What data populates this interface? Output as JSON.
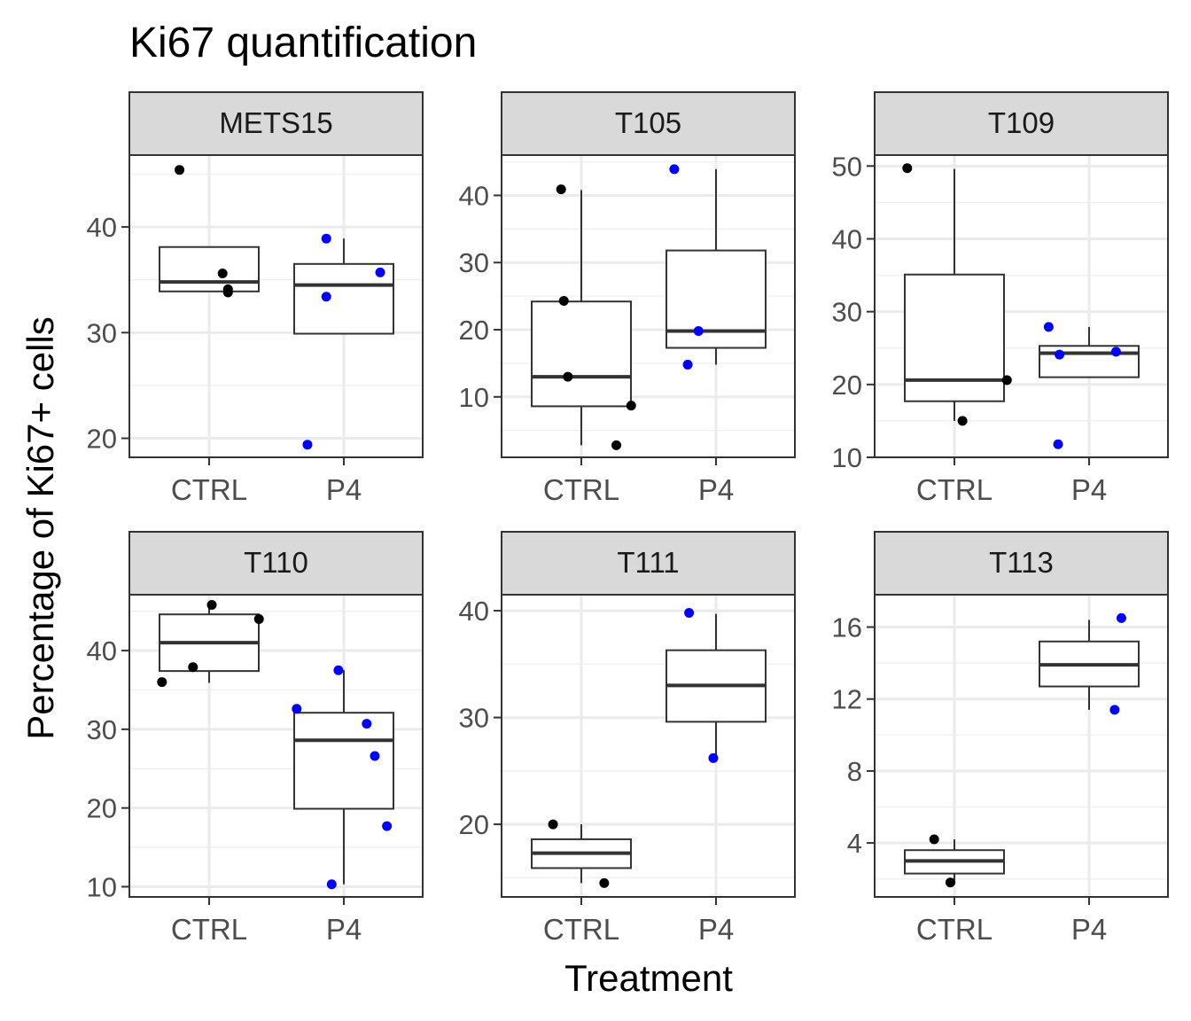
{
  "chart_data": {
    "type": "boxplot",
    "title": "Ki67 quantification",
    "xlabel": "Treatment",
    "ylabel": "Percentage of Ki67+ cells",
    "categories": [
      "CTRL",
      "P4"
    ],
    "colors": {
      "CTRL": "#000000",
      "P4": "#0000ff"
    },
    "grid": true,
    "panels": [
      {
        "name": "METS15",
        "ylim": [
          18.2,
          46.8
        ],
        "yticks": [
          20,
          30,
          40
        ],
        "boxes": [
          {
            "group": "CTRL",
            "q1": 33.9,
            "median": 34.8,
            "q3": 38.1,
            "whisker_low": 33.9,
            "whisker_high": 38.1
          },
          {
            "group": "P4",
            "q1": 29.9,
            "median": 34.5,
            "q3": 36.5,
            "whisker_low": 29.9,
            "whisker_high": 38.9
          }
        ],
        "points": [
          {
            "group": "CTRL",
            "jitter": -0.22,
            "y": 45.4
          },
          {
            "group": "CTRL",
            "jitter": 0.1,
            "y": 35.6
          },
          {
            "group": "CTRL",
            "jitter": 0.14,
            "y": 34.1
          },
          {
            "group": "CTRL",
            "jitter": 0.14,
            "y": 33.8
          },
          {
            "group": "P4",
            "jitter": -0.27,
            "y": 19.4
          },
          {
            "group": "P4",
            "jitter": -0.13,
            "y": 33.4
          },
          {
            "group": "P4",
            "jitter": -0.13,
            "y": 38.9
          },
          {
            "group": "P4",
            "jitter": 0.27,
            "y": 35.7
          }
        ]
      },
      {
        "name": "T105",
        "ylim": [
          1.0,
          46.0
        ],
        "yticks": [
          10,
          20,
          30,
          40
        ],
        "boxes": [
          {
            "group": "CTRL",
            "q1": 8.6,
            "median": 13.0,
            "q3": 24.2,
            "whisker_low": 2.8,
            "whisker_high": 40.8
          },
          {
            "group": "P4",
            "q1": 17.3,
            "median": 19.8,
            "q3": 31.8,
            "whisker_low": 14.8,
            "whisker_high": 43.9
          }
        ],
        "points": [
          {
            "group": "CTRL",
            "jitter": -0.15,
            "y": 40.9
          },
          {
            "group": "CTRL",
            "jitter": -0.13,
            "y": 24.3
          },
          {
            "group": "CTRL",
            "jitter": -0.1,
            "y": 13.0
          },
          {
            "group": "CTRL",
            "jitter": 0.26,
            "y": 2.8
          },
          {
            "group": "CTRL",
            "jitter": 0.37,
            "y": 8.7
          },
          {
            "group": "P4",
            "jitter": -0.31,
            "y": 43.9
          },
          {
            "group": "P4",
            "jitter": -0.21,
            "y": 14.8
          },
          {
            "group": "P4",
            "jitter": -0.13,
            "y": 19.8
          }
        ]
      },
      {
        "name": "T109",
        "ylim": [
          10.0,
          51.5
        ],
        "yticks": [
          10,
          20,
          30,
          40,
          50
        ],
        "boxes": [
          {
            "group": "CTRL",
            "q1": 17.7,
            "median": 20.6,
            "q3": 35.1,
            "whisker_low": 15.0,
            "whisker_high": 49.6
          },
          {
            "group": "P4",
            "q1": 21.0,
            "median": 24.3,
            "q3": 25.3,
            "whisker_low": 21.0,
            "whisker_high": 27.9
          }
        ],
        "points": [
          {
            "group": "CTRL",
            "jitter": -0.35,
            "y": 49.7
          },
          {
            "group": "CTRL",
            "jitter": 0.06,
            "y": 15.0
          },
          {
            "group": "CTRL",
            "jitter": 0.39,
            "y": 20.6
          },
          {
            "group": "P4",
            "jitter": -0.3,
            "y": 27.9
          },
          {
            "group": "P4",
            "jitter": -0.22,
            "y": 24.1
          },
          {
            "group": "P4",
            "jitter": -0.23,
            "y": 11.8
          },
          {
            "group": "P4",
            "jitter": 0.2,
            "y": 24.5
          }
        ]
      },
      {
        "name": "T110",
        "ylim": [
          8.7,
          47.1
        ],
        "yticks": [
          10,
          20,
          30,
          40
        ],
        "boxes": [
          {
            "group": "CTRL",
            "q1": 37.4,
            "median": 41.0,
            "q3": 44.6,
            "whisker_low": 35.9,
            "whisker_high": 45.8
          },
          {
            "group": "P4",
            "q1": 19.9,
            "median": 28.6,
            "q3": 32.1,
            "whisker_low": 10.3,
            "whisker_high": 37.5
          }
        ],
        "points": [
          {
            "group": "CTRL",
            "jitter": -0.35,
            "y": 36.0
          },
          {
            "group": "CTRL",
            "jitter": -0.12,
            "y": 37.9
          },
          {
            "group": "CTRL",
            "jitter": 0.02,
            "y": 45.8
          },
          {
            "group": "CTRL",
            "jitter": 0.37,
            "y": 44.0
          },
          {
            "group": "P4",
            "jitter": -0.35,
            "y": 32.6
          },
          {
            "group": "P4",
            "jitter": -0.09,
            "y": 10.3
          },
          {
            "group": "P4",
            "jitter": -0.04,
            "y": 37.5
          },
          {
            "group": "P4",
            "jitter": 0.17,
            "y": 30.7
          },
          {
            "group": "P4",
            "jitter": 0.23,
            "y": 26.6
          },
          {
            "group": "P4",
            "jitter": 0.32,
            "y": 17.7
          }
        ]
      },
      {
        "name": "T111",
        "ylim": [
          13.2,
          41.5
        ],
        "yticks": [
          20,
          30,
          40
        ],
        "boxes": [
          {
            "group": "CTRL",
            "q1": 15.9,
            "median": 17.3,
            "q3": 18.6,
            "whisker_low": 14.5,
            "whisker_high": 20.0
          },
          {
            "group": "P4",
            "q1": 29.6,
            "median": 33.0,
            "q3": 36.3,
            "whisker_low": 26.2,
            "whisker_high": 39.7
          }
        ],
        "points": [
          {
            "group": "CTRL",
            "jitter": -0.21,
            "y": 20.0
          },
          {
            "group": "CTRL",
            "jitter": 0.17,
            "y": 14.5
          },
          {
            "group": "P4",
            "jitter": -0.2,
            "y": 39.8
          },
          {
            "group": "P4",
            "jitter": -0.02,
            "y": 26.2
          }
        ]
      },
      {
        "name": "T113",
        "ylim": [
          1.0,
          17.8
        ],
        "yticks": [
          4,
          8,
          12,
          16
        ],
        "boxes": [
          {
            "group": "CTRL",
            "q1": 2.3,
            "median": 3.0,
            "q3": 3.6,
            "whisker_low": 1.7,
            "whisker_high": 4.2
          },
          {
            "group": "P4",
            "q1": 12.7,
            "median": 13.9,
            "q3": 15.2,
            "whisker_low": 11.4,
            "whisker_high": 16.4
          }
        ],
        "points": [
          {
            "group": "CTRL",
            "jitter": -0.15,
            "y": 4.2
          },
          {
            "group": "CTRL",
            "jitter": -0.03,
            "y": 1.8
          },
          {
            "group": "P4",
            "jitter": 0.19,
            "y": 11.4
          },
          {
            "group": "P4",
            "jitter": 0.24,
            "y": 16.5
          }
        ]
      }
    ]
  }
}
